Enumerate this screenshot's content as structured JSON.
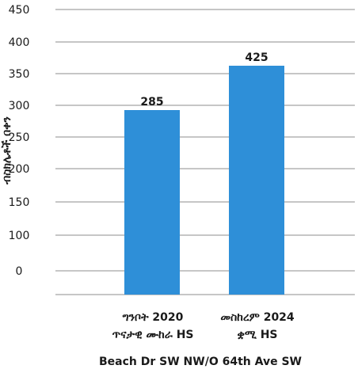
{
  "chart_data": {
    "type": "bar",
    "categories": [
      [
        "ግንቦት 2020",
        "ጥናታዊ ሙከራ HS"
      ],
      [
        "መስከረም 2024",
        "ቋሚ HS"
      ]
    ],
    "values": [
      285,
      425
    ],
    "title": "",
    "xlabel": "Beach Dr SW NW/O 64th Ave SW",
    "ylabel": "ብስክሌቶች በቀን",
    "ylim": [
      0,
      450
    ],
    "yticks": [
      0,
      100,
      150,
      200,
      250,
      300,
      350,
      400,
      450
    ],
    "grid": true,
    "legend": "none",
    "bar_color": "#2e8fd8",
    "grid_color": "#8c8c8c"
  }
}
